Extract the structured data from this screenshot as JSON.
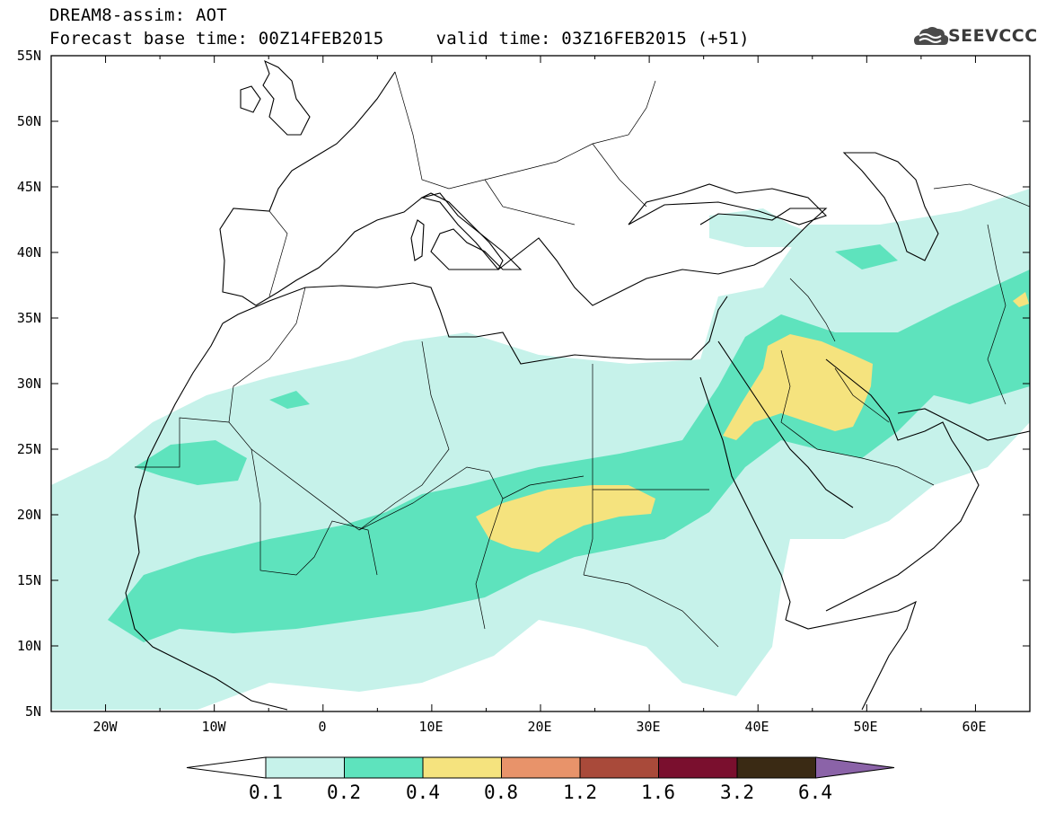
{
  "header": {
    "title_line1": "DREAM8-assim: AOT",
    "title_line2": "Forecast base time: 00Z14FEB2015     valid time: 03Z16FEB2015 (+51)",
    "logo_text": "SEEVCCC",
    "logo_icon": "cloud-icon"
  },
  "map": {
    "lat_labels": [
      "55N",
      "50N",
      "45N",
      "40N",
      "35N",
      "30N",
      "25N",
      "20N",
      "15N",
      "10N",
      "5N"
    ],
    "lon_labels": [
      "20W",
      "10W",
      "0",
      "10E",
      "20E",
      "30E",
      "40E",
      "50E",
      "60E"
    ],
    "extent": {
      "lon_min": -25,
      "lon_max": 65,
      "lat_min": 5,
      "lat_max": 55
    }
  },
  "legend": {
    "labels": [
      "0.1",
      "0.2",
      "0.4",
      "0.8",
      "1.2",
      "1.6",
      "3.2",
      "6.4"
    ],
    "colors": [
      "#ffffff",
      "#c6f2ea",
      "#5ee3bd",
      "#f5e37e",
      "#e8936a",
      "#a94a3a",
      "#7a0f2e",
      "#3a2a14",
      "#8b63a8"
    ]
  }
}
